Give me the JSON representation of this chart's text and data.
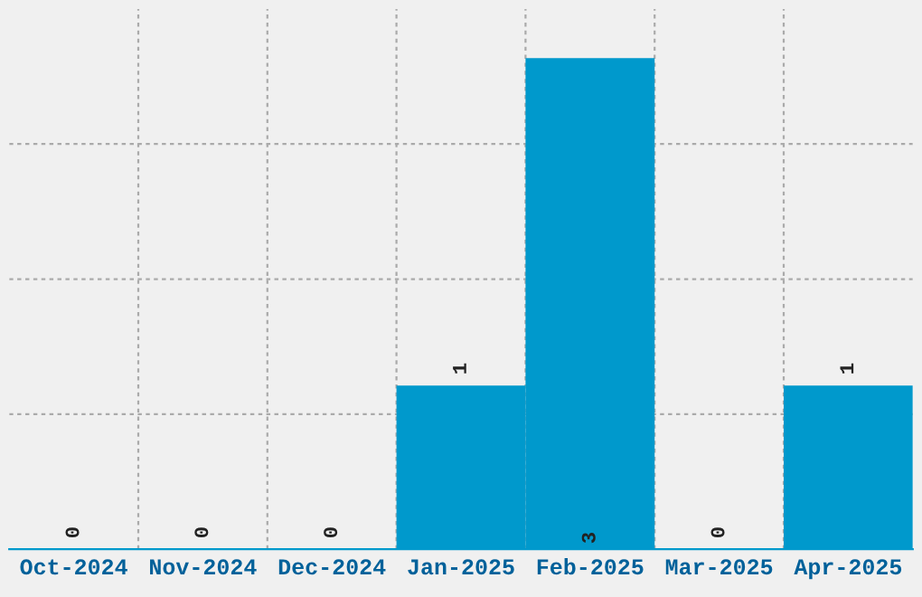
{
  "chart_data": {
    "type": "bar",
    "categories": [
      "Oct-2024",
      "Nov-2024",
      "Dec-2024",
      "Jan-2025",
      "Feb-2025",
      "Mar-2025",
      "Apr-2025"
    ],
    "values": [
      0,
      0,
      0,
      1,
      3,
      0,
      1
    ],
    "color": "#0099cc",
    "ylim": [
      0,
      3.3
    ],
    "yticks": [
      {
        "value": 0.825,
        "label": null
      },
      {
        "value": 1.65,
        "label": null
      },
      {
        "value": 2.475,
        "label": null
      }
    ],
    "tick_labels": "x",
    "grid": true,
    "data_labels": true
  }
}
